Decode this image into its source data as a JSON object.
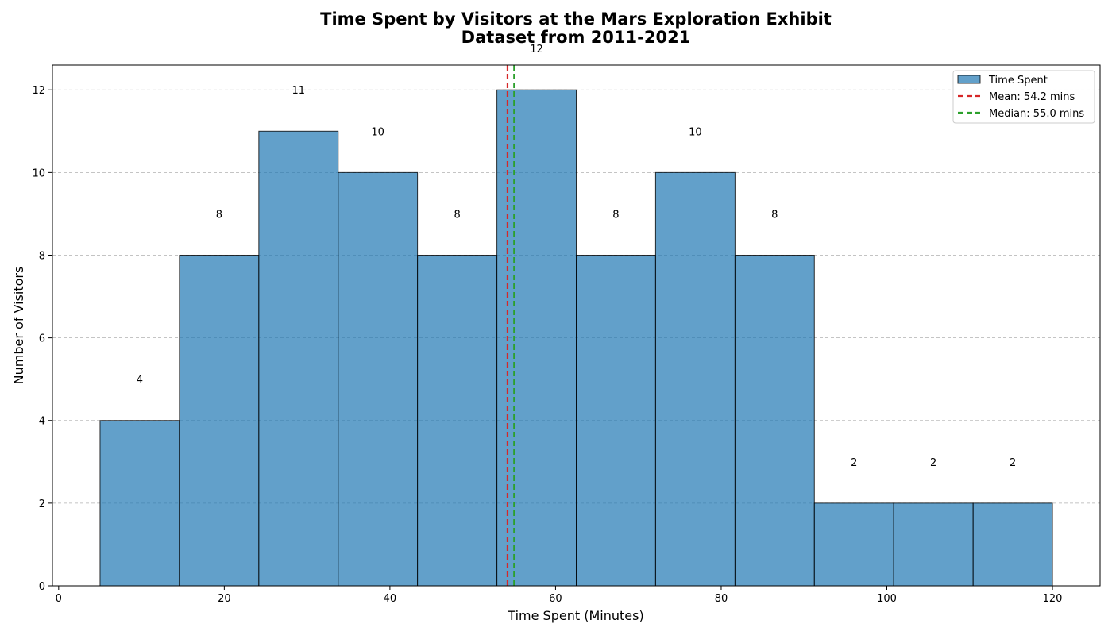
{
  "chart_data": {
    "type": "bar",
    "title": "Time Spent by Visitors at the Mars Exploration Exhibit",
    "subtitle": "Dataset from 2011-2021",
    "xlabel": "Time Spent (Minutes)",
    "ylabel": "Number of Visitors",
    "xlim": [
      -0.75,
      125.75
    ],
    "ylim": [
      0,
      12.6
    ],
    "xticks": [
      0,
      20,
      40,
      60,
      80,
      100,
      120
    ],
    "yticks": [
      0,
      2,
      4,
      6,
      8,
      10,
      12
    ],
    "bin_edges": [
      5,
      14.58,
      24.17,
      33.75,
      43.33,
      52.92,
      62.5,
      72.08,
      81.67,
      91.25,
      100.83,
      110.42,
      120
    ],
    "series": [
      {
        "name": "Time Spent",
        "values": [
          4,
          8,
          11,
          10,
          8,
          12,
          8,
          10,
          8,
          2,
          2,
          2
        ]
      }
    ],
    "data_labels": [
      "4",
      "8",
      "11",
      "10",
      "8",
      "12",
      "8",
      "10",
      "8",
      "2",
      "2",
      "2"
    ],
    "reference_lines": [
      {
        "name": "Mean: 54.2 mins",
        "value": 54.2,
        "color": "#d62728",
        "style": "dashed"
      },
      {
        "name": "Median: 55.0 mins",
        "value": 55.0,
        "color": "#2ca02c",
        "style": "dashed"
      }
    ],
    "grid": "y-dashed",
    "legend_position": "top-right",
    "colors": {
      "bar": "#1f77b4",
      "bar_edge": "#000000"
    }
  }
}
